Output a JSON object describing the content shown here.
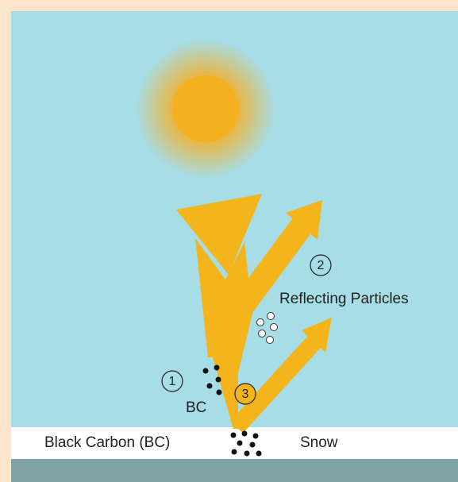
{
  "labels": {
    "step_1": "1",
    "step_2": "2",
    "step_3": "3",
    "reflecting": "Reflecting Particles",
    "bc": "BC",
    "black_carbon": "Black Carbon (BC)",
    "snow": "Snow"
  }
}
